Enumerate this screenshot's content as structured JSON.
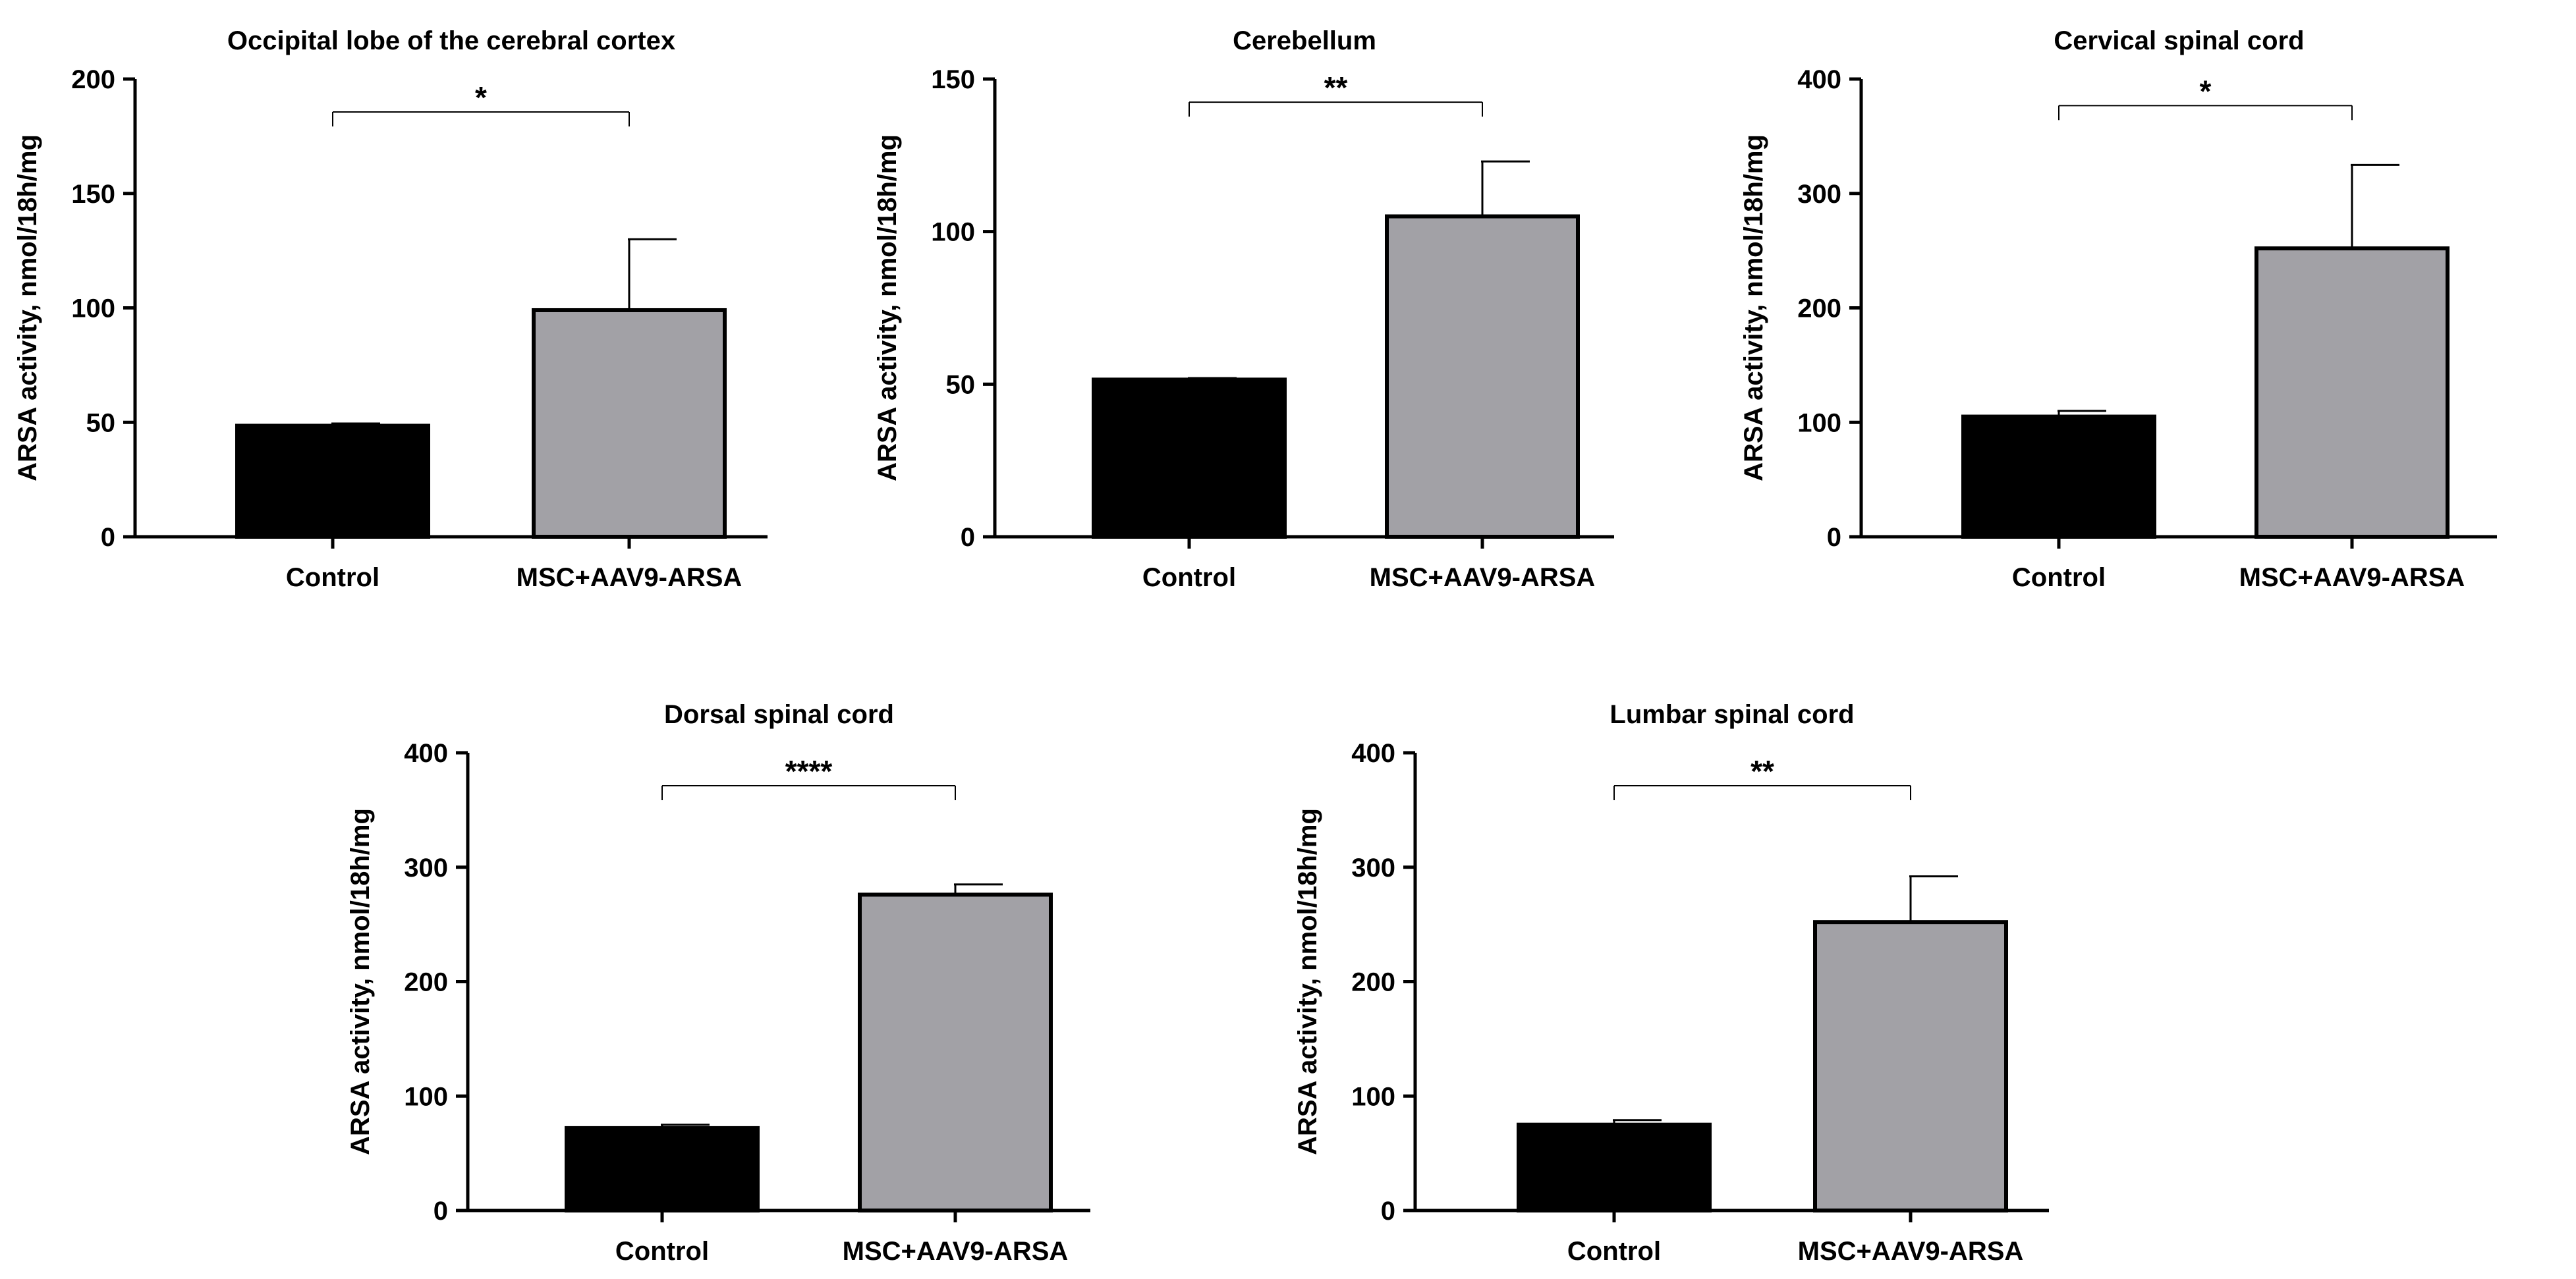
{
  "colors": {
    "control": "#000000",
    "treated": "#a2a1a6",
    "axis": "#000000"
  },
  "chart_data": [
    {
      "type": "bar",
      "title": "Occipital lobe of the cerebral cortex",
      "ylabel": "ARSA activity, nmol/18h/mg",
      "categories": [
        "Control",
        "MSC+AAV9-ARSA"
      ],
      "values": [
        48.5,
        99
      ],
      "errors": [
        1,
        31
      ],
      "ylim": [
        0,
        200
      ],
      "yticks": [
        "0",
        "50",
        "100",
        "150",
        "200"
      ],
      "significance": "*"
    },
    {
      "type": "bar",
      "title": "Cerebellum",
      "ylabel": "ARSA activity, nmol/18h/mg",
      "categories": [
        "Control",
        "MSC+AAV9-ARSA"
      ],
      "values": [
        51.5,
        105
      ],
      "errors": [
        0.5,
        18
      ],
      "ylim": [
        0,
        150
      ],
      "yticks": [
        "0",
        "50",
        "100",
        "150"
      ],
      "significance": "**"
    },
    {
      "type": "bar",
      "title": "Cervical spinal cord",
      "ylabel": "ARSA activity, nmol/18h/mg",
      "categories": [
        "Control",
        "MSC+AAV9-ARSA"
      ],
      "values": [
        105,
        252
      ],
      "errors": [
        5,
        73
      ],
      "ylim": [
        0,
        400
      ],
      "yticks": [
        "0",
        "100",
        "200",
        "300",
        "400"
      ],
      "significance": "*"
    },
    {
      "type": "bar",
      "title": "Dorsal spinal cord",
      "ylabel": "ARSA activity, nmol/18h/mg",
      "categories": [
        "Control",
        "MSC+AAV9-ARSA"
      ],
      "values": [
        72,
        276
      ],
      "errors": [
        3,
        9
      ],
      "ylim": [
        0,
        400
      ],
      "yticks": [
        "0",
        "100",
        "200",
        "300",
        "400"
      ],
      "significance": "****"
    },
    {
      "type": "bar",
      "title": "Lumbar spinal cord",
      "ylabel": "ARSA activity, nmol/18h/mg",
      "categories": [
        "Control",
        "MSC+AAV9-ARSA"
      ],
      "values": [
        75,
        252
      ],
      "errors": [
        4,
        40
      ],
      "ylim": [
        0,
        400
      ],
      "yticks": [
        "0",
        "100",
        "200",
        "300",
        "400"
      ],
      "significance": "**"
    }
  ]
}
